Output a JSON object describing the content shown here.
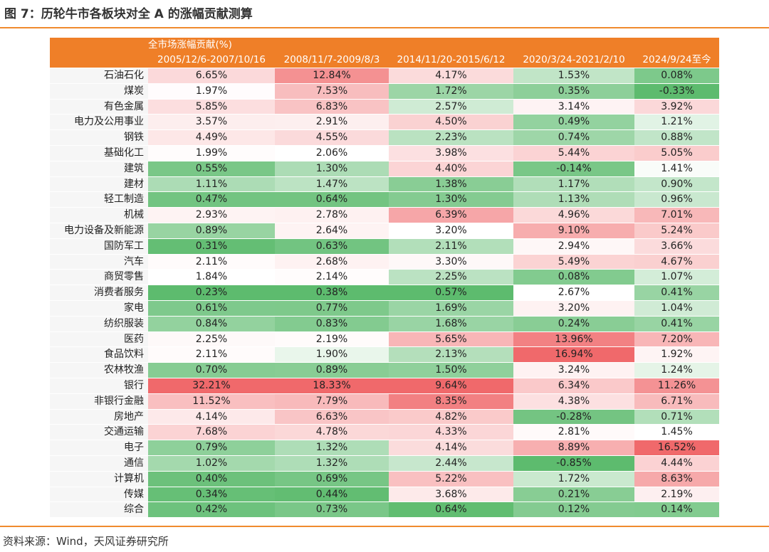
{
  "title": "图 7：历轮牛市各板块对全 A 的涨幅贡献测算",
  "source": "资料来源：Wind，天风证券研究所",
  "table": {
    "super_header": "全市场涨幅贡献(%)",
    "columns": [
      "2005/12/6-2007/10/16",
      "2008/11/7-2009/8/3",
      "2014/11/20-2015/6/12",
      "2020/3/24-2021/2/10",
      "2024/9/24至今"
    ],
    "rows": [
      {
        "name": "石油石化",
        "values": [
          "6.65%",
          "12.84%",
          "4.17%",
          "1.53%",
          "0.08%"
        ]
      },
      {
        "name": "煤炭",
        "values": [
          "1.97%",
          "7.53%",
          "1.72%",
          "0.35%",
          "-0.33%"
        ]
      },
      {
        "name": "有色金属",
        "values": [
          "5.85%",
          "6.83%",
          "2.57%",
          "3.14%",
          "3.92%"
        ]
      },
      {
        "name": "电力及公用事业",
        "values": [
          "3.57%",
          "2.91%",
          "4.50%",
          "0.49%",
          "1.21%"
        ]
      },
      {
        "name": "钢铁",
        "values": [
          "4.49%",
          "4.55%",
          "2.23%",
          "0.74%",
          "0.88%"
        ]
      },
      {
        "name": "基础化工",
        "values": [
          "1.99%",
          "2.06%",
          "3.98%",
          "5.44%",
          "5.05%"
        ]
      },
      {
        "name": "建筑",
        "values": [
          "0.55%",
          "1.30%",
          "4.40%",
          "-0.14%",
          "1.41%"
        ]
      },
      {
        "name": "建材",
        "values": [
          "1.11%",
          "1.47%",
          "1.38%",
          "1.17%",
          "0.90%"
        ]
      },
      {
        "name": "轻工制造",
        "values": [
          "0.47%",
          "0.64%",
          "1.30%",
          "1.13%",
          "0.96%"
        ]
      },
      {
        "name": "机械",
        "values": [
          "2.93%",
          "2.78%",
          "6.39%",
          "4.96%",
          "7.01%"
        ]
      },
      {
        "name": "电力设备及新能源",
        "values": [
          "0.89%",
          "2.64%",
          "3.20%",
          "9.10%",
          "5.24%"
        ]
      },
      {
        "name": "国防军工",
        "values": [
          "0.31%",
          "0.63%",
          "2.11%",
          "2.94%",
          "3.66%"
        ]
      },
      {
        "name": "汽车",
        "values": [
          "2.11%",
          "2.68%",
          "3.30%",
          "5.49%",
          "4.67%"
        ]
      },
      {
        "name": "商贸零售",
        "values": [
          "1.84%",
          "2.14%",
          "2.25%",
          "0.08%",
          "1.07%"
        ]
      },
      {
        "name": "消费者服务",
        "values": [
          "0.23%",
          "0.38%",
          "0.57%",
          "2.67%",
          "0.41%"
        ]
      },
      {
        "name": "家电",
        "values": [
          "0.61%",
          "0.77%",
          "1.69%",
          "3.20%",
          "1.04%"
        ]
      },
      {
        "name": "纺织服装",
        "values": [
          "0.84%",
          "0.83%",
          "1.68%",
          "0.24%",
          "0.41%"
        ]
      },
      {
        "name": "医药",
        "values": [
          "2.25%",
          "2.19%",
          "5.65%",
          "13.96%",
          "7.20%"
        ]
      },
      {
        "name": "食品饮料",
        "values": [
          "2.11%",
          "1.90%",
          "2.13%",
          "16.94%",
          "1.92%"
        ]
      },
      {
        "name": "农林牧渔",
        "values": [
          "0.70%",
          "0.89%",
          "1.50%",
          "3.24%",
          "1.24%"
        ]
      },
      {
        "name": "银行",
        "values": [
          "32.21%",
          "18.33%",
          "9.64%",
          "6.34%",
          "11.26%"
        ]
      },
      {
        "name": "非银行金融",
        "values": [
          "11.52%",
          "7.79%",
          "8.35%",
          "4.38%",
          "6.71%"
        ]
      },
      {
        "name": "房地产",
        "values": [
          "4.14%",
          "6.63%",
          "4.82%",
          "-0.28%",
          "0.71%"
        ]
      },
      {
        "name": "交通运输",
        "values": [
          "7.68%",
          "4.78%",
          "4.33%",
          "2.81%",
          "1.45%"
        ]
      },
      {
        "name": "电子",
        "values": [
          "0.79%",
          "1.32%",
          "4.14%",
          "8.89%",
          "16.52%"
        ]
      },
      {
        "name": "通信",
        "values": [
          "1.02%",
          "1.32%",
          "2.44%",
          "-0.85%",
          "4.44%"
        ]
      },
      {
        "name": "计算机",
        "values": [
          "0.40%",
          "0.69%",
          "5.22%",
          "1.72%",
          "8.63%"
        ]
      },
      {
        "name": "传媒",
        "values": [
          "0.34%",
          "0.44%",
          "3.68%",
          "0.21%",
          "2.19%"
        ]
      },
      {
        "name": "综合",
        "values": [
          "0.42%",
          "0.73%",
          "0.64%",
          "0.12%",
          "0.14%"
        ]
      }
    ]
  },
  "colors": {
    "accent": "#EF7F28",
    "heat_low": "#5DBB6E",
    "heat_mid": "#FFFFFF",
    "heat_high": "#F0696B"
  }
}
